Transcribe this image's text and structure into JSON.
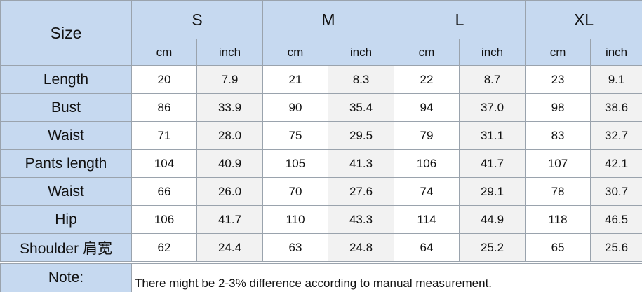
{
  "header": {
    "label": "Size",
    "sizes": [
      "S",
      "M",
      "L",
      "XL"
    ],
    "units": [
      "cm",
      "inch"
    ]
  },
  "rows": [
    {
      "label": "Length",
      "values": [
        "20",
        "7.9",
        "21",
        "8.3",
        "22",
        "8.7",
        "23",
        "9.1"
      ]
    },
    {
      "label": "Bust",
      "values": [
        "86",
        "33.9",
        "90",
        "35.4",
        "94",
        "37.0",
        "98",
        "38.6"
      ]
    },
    {
      "label": "Waist",
      "values": [
        "71",
        "28.0",
        "75",
        "29.5",
        "79",
        "31.1",
        "83",
        "32.7"
      ]
    },
    {
      "label": "Pants length",
      "values": [
        "104",
        "40.9",
        "105",
        "41.3",
        "106",
        "41.7",
        "107",
        "42.1"
      ]
    },
    {
      "label": "Waist",
      "values": [
        "66",
        "26.0",
        "70",
        "27.6",
        "74",
        "29.1",
        "78",
        "30.7"
      ]
    },
    {
      "label": "Hip",
      "values": [
        "106",
        "41.7",
        "110",
        "43.3",
        "114",
        "44.9",
        "118",
        "46.5"
      ]
    },
    {
      "label": "Shoulder 肩宽",
      "values": [
        "62",
        "24.4",
        "63",
        "24.8",
        "64",
        "25.2",
        "65",
        "25.6"
      ]
    }
  ],
  "note": {
    "label": "Note:",
    "text": "There might be 2-3% difference according to manual measurement."
  }
}
